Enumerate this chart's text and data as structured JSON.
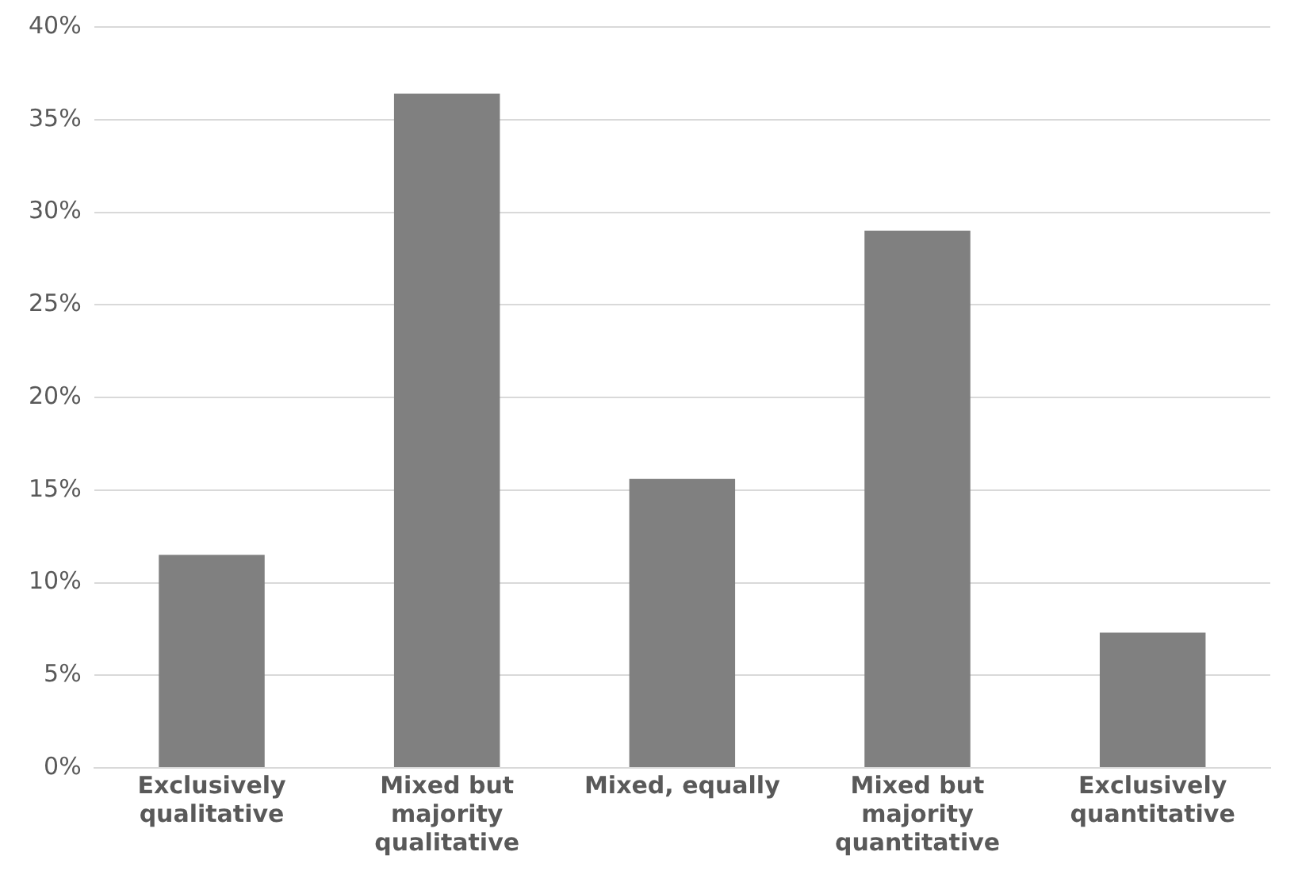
{
  "chart_data": {
    "type": "bar",
    "categories": [
      "Exclusively qualitative",
      "Mixed but majority qualitative",
      "Mixed, equally",
      "Mixed but majority quantitative",
      "Exclusively quantitative"
    ],
    "values": [
      11.5,
      36.4,
      15.6,
      29.0,
      7.3
    ],
    "color": "#808080",
    "ylim": [
      0,
      40
    ],
    "yticks": [
      {
        "value": 0,
        "label": "0%"
      },
      {
        "value": 5,
        "label": "5%"
      },
      {
        "value": 10,
        "label": "10%"
      },
      {
        "value": 15,
        "label": "15%"
      },
      {
        "value": 20,
        "label": "20%"
      },
      {
        "value": 25,
        "label": "25%"
      },
      {
        "value": 30,
        "label": "30%"
      },
      {
        "value": 35,
        "label": "35%"
      },
      {
        "value": 40,
        "label": "40%"
      }
    ],
    "grid": "y"
  }
}
